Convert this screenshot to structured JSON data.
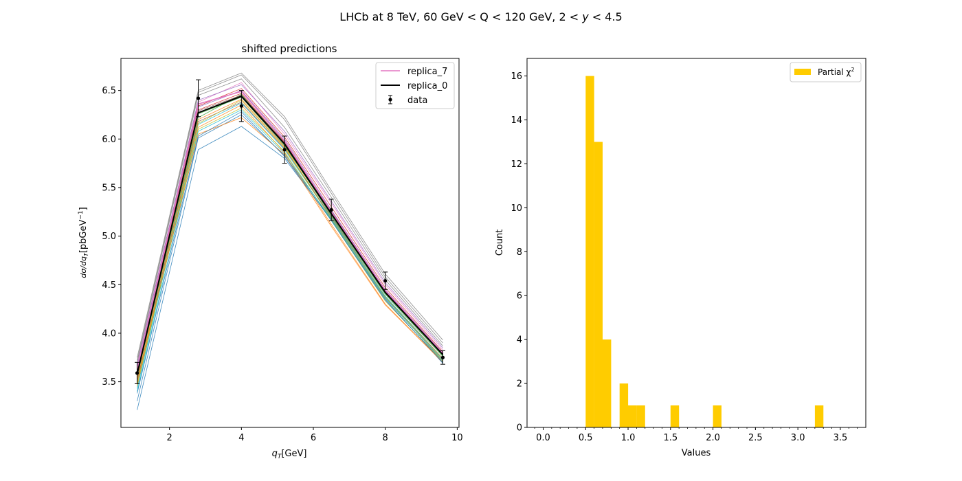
{
  "figure": {
    "suptitle_parts": [
      "LHCb at 8 TeV, 60 GeV < Q < 120 GeV, 2 < ",
      "y",
      " < 4.5"
    ]
  },
  "chart_data": [
    {
      "type": "line",
      "title": "shifted predictions",
      "xlabel_main": "q",
      "xlabel_sub": "T",
      "xlabel_unit": "[GeV]",
      "ylabel_expr": "dσ/dq",
      "ylabel_sub": "T",
      "ylabel_unit": "[pbGeV",
      "ylabel_exp": "−1",
      "ylabel_close": "]",
      "xlim": [
        0.65,
        10.05
      ],
      "ylim": [
        3.03,
        6.83
      ],
      "xticks": [
        2,
        4,
        6,
        8,
        10
      ],
      "yticks": [
        3.5,
        4.0,
        4.5,
        5.0,
        5.5,
        6.0,
        6.5
      ],
      "x": [
        1.1,
        2.8,
        4.0,
        5.2,
        6.5,
        8.0,
        9.6
      ],
      "legend": {
        "placement": "top-right",
        "entries": [
          "replica_7",
          "replica_0",
          "data"
        ]
      },
      "colors": {
        "replica_7": "#e377c2",
        "replica_0": "#000000",
        "data": "#000000"
      },
      "data": {
        "name": "data",
        "y": [
          3.59,
          6.42,
          6.34,
          5.89,
          5.27,
          4.54,
          3.75
        ],
        "err": [
          0.11,
          0.19,
          0.16,
          0.14,
          0.11,
          0.09,
          0.07
        ]
      },
      "series": [
        {
          "name": "replica_0",
          "color": "#000000",
          "y": [
            3.58,
            6.27,
            6.44,
            5.95,
            5.23,
            4.42,
            3.78
          ]
        },
        {
          "name": "replica_7",
          "color": "#e377c2",
          "y": [
            3.62,
            6.36,
            6.49,
            5.98,
            5.25,
            4.44,
            3.79
          ]
        },
        {
          "color": "#1f77b4",
          "y": [
            3.21,
            5.89,
            6.13,
            5.8,
            5.17,
            4.35,
            3.69
          ]
        },
        {
          "color": "#1f77b4",
          "y": [
            3.3,
            6.01,
            6.25,
            5.83,
            5.18,
            4.37,
            3.71
          ]
        },
        {
          "color": "#ff7f0e",
          "y": [
            3.45,
            6.12,
            6.35,
            5.86,
            5.12,
            4.3,
            3.7
          ]
        },
        {
          "color": "#ff7f0e",
          "y": [
            3.52,
            6.2,
            6.41,
            5.92,
            5.19,
            4.36,
            3.72
          ]
        },
        {
          "color": "#2ca02c",
          "y": [
            3.55,
            6.22,
            6.46,
            5.94,
            5.21,
            4.4,
            3.76
          ]
        },
        {
          "color": "#d62728",
          "y": [
            3.6,
            6.3,
            6.47,
            5.96,
            5.24,
            4.43,
            3.79
          ]
        },
        {
          "color": "#9467bd",
          "y": [
            3.63,
            6.33,
            6.5,
            6.0,
            5.27,
            4.45,
            3.8
          ]
        },
        {
          "color": "#8c564b",
          "y": [
            3.5,
            6.18,
            6.38,
            5.9,
            5.2,
            4.38,
            3.74
          ]
        },
        {
          "color": "#7f7f7f",
          "y": [
            3.72,
            6.48,
            6.66,
            6.2,
            5.44,
            4.58,
            3.9
          ]
        },
        {
          "color": "#7f7f7f",
          "y": [
            3.75,
            6.5,
            6.68,
            6.23,
            5.47,
            4.61,
            3.93
          ]
        },
        {
          "color": "#bcbd22",
          "y": [
            3.48,
            6.1,
            6.32,
            5.87,
            5.16,
            4.33,
            3.71
          ]
        },
        {
          "color": "#17becf",
          "y": [
            3.4,
            6.08,
            6.3,
            5.85,
            5.17,
            4.36,
            3.72
          ]
        },
        {
          "color": "#17becf",
          "y": [
            3.43,
            6.15,
            6.37,
            5.89,
            5.19,
            4.38,
            3.73
          ]
        },
        {
          "color": "#e377c2",
          "y": [
            3.68,
            6.38,
            6.58,
            6.05,
            5.34,
            4.5,
            3.83
          ]
        },
        {
          "color": "#9467bd",
          "y": [
            3.66,
            6.4,
            6.56,
            6.08,
            5.36,
            4.52,
            3.85
          ]
        },
        {
          "color": "#2ca02c",
          "y": [
            3.56,
            6.26,
            6.43,
            5.93,
            5.22,
            4.41,
            3.77
          ]
        },
        {
          "color": "#ff7f0e",
          "y": [
            3.53,
            6.05,
            6.22,
            5.84,
            5.1,
            4.29,
            3.7
          ]
        },
        {
          "color": "#d62728",
          "y": [
            3.61,
            6.34,
            6.52,
            6.02,
            5.3,
            4.47,
            3.81
          ]
        },
        {
          "color": "#1f77b4",
          "y": [
            3.38,
            6.03,
            6.28,
            5.82,
            5.16,
            4.34,
            3.7
          ]
        },
        {
          "color": "#8c564b",
          "y": [
            3.58,
            6.29,
            6.45,
            5.97,
            5.26,
            4.44,
            3.79
          ]
        },
        {
          "color": "#bcbd22",
          "y": [
            3.47,
            6.16,
            6.4,
            5.91,
            5.18,
            4.37,
            3.73
          ]
        },
        {
          "color": "#7f7f7f",
          "y": [
            3.7,
            6.45,
            6.62,
            6.12,
            5.4,
            4.55,
            3.87
          ]
        }
      ]
    },
    {
      "type": "bar",
      "title": "",
      "xlabel": "Values",
      "ylabel": "Count",
      "xlim": [
        -0.19,
        3.8
      ],
      "ylim": [
        0,
        16.8
      ],
      "xticks": [
        0.0,
        0.5,
        1.0,
        1.5,
        2.0,
        2.5,
        3.0,
        3.5
      ],
      "xtick_labels": [
        "0.0",
        "0.5",
        "1.0",
        "1.5",
        "2.0",
        "2.5",
        "3.0",
        "3.5"
      ],
      "yticks": [
        0,
        2,
        4,
        6,
        8,
        10,
        12,
        14,
        16
      ],
      "bin_width": 0.1,
      "bins": [
        {
          "left": 0.5,
          "count": 16
        },
        {
          "left": 0.6,
          "count": 13
        },
        {
          "left": 0.7,
          "count": 4
        },
        {
          "left": 0.9,
          "count": 2
        },
        {
          "left": 1.0,
          "count": 1
        },
        {
          "left": 1.1,
          "count": 1
        },
        {
          "left": 1.5,
          "count": 1
        },
        {
          "left": 2.0,
          "count": 1
        },
        {
          "left": 3.2,
          "count": 1
        }
      ],
      "legend": {
        "placement": "top-right",
        "entry_main": "Partial χ",
        "entry_exp": "2"
      },
      "colors": {
        "bar": "#ffcc00"
      }
    }
  ]
}
